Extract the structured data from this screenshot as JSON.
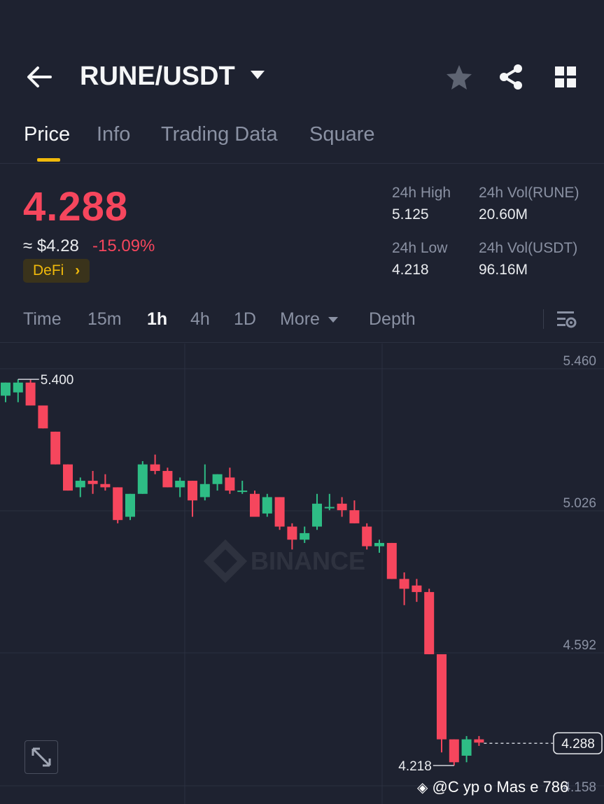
{
  "header": {
    "pair": "RUNE/USDT",
    "icons": [
      "back-arrow-icon",
      "caret-down-icon",
      "star-icon",
      "share-icon",
      "grid-icon"
    ]
  },
  "tabs": [
    {
      "label": "Price",
      "active": true
    },
    {
      "label": "Info",
      "active": false
    },
    {
      "label": "Trading Data",
      "active": false
    },
    {
      "label": "Square",
      "active": false
    }
  ],
  "ticker": {
    "price": "4.288",
    "approx": "≈ $4.28",
    "change": "-15.09%",
    "tag": "DeFi",
    "high_label": "24h High",
    "high": "5.125",
    "low_label": "24h Low",
    "low": "4.218",
    "vol_base_label": "24h Vol(RUNE)",
    "vol_base": "20.60M",
    "vol_quote_label": "24h Vol(USDT)",
    "vol_quote": "96.16M"
  },
  "intervals": [
    {
      "label": "Time",
      "active": false
    },
    {
      "label": "15m",
      "active": false
    },
    {
      "label": "1h",
      "active": true
    },
    {
      "label": "4h",
      "active": false
    },
    {
      "label": "1D",
      "active": false
    },
    {
      "label": "More",
      "active": false
    },
    {
      "label": "Depth",
      "active": false
    }
  ],
  "colors": {
    "up": "#2ebd85",
    "down": "#f6465d",
    "accent": "#f0b90b",
    "background": "#1e2230"
  },
  "chart_data": {
    "type": "candlestick",
    "y_ticks": [
      "5.460",
      "5.026",
      "4.592",
      "4.158"
    ],
    "ylim": [
      4.158,
      5.46
    ],
    "max_label": "5.400",
    "min_label": "4.218",
    "last_price_label": "4.288",
    "watermark": "BINANCE",
    "candles": [
      {
        "o": 5.35,
        "h": 5.39,
        "l": 5.33,
        "c": 5.39
      },
      {
        "o": 5.36,
        "h": 5.4,
        "l": 5.33,
        "c": 5.39
      },
      {
        "o": 5.39,
        "h": 5.4,
        "l": 5.32,
        "c": 5.32
      },
      {
        "o": 5.32,
        "h": 5.32,
        "l": 5.25,
        "c": 5.25
      },
      {
        "o": 5.24,
        "h": 5.24,
        "l": 5.14,
        "c": 5.14
      },
      {
        "o": 5.14,
        "h": 5.14,
        "l": 5.06,
        "c": 5.06
      },
      {
        "o": 5.07,
        "h": 5.1,
        "l": 5.04,
        "c": 5.09
      },
      {
        "o": 5.09,
        "h": 5.12,
        "l": 5.05,
        "c": 5.08
      },
      {
        "o": 5.08,
        "h": 5.11,
        "l": 5.06,
        "c": 5.07
      },
      {
        "o": 5.07,
        "h": 5.07,
        "l": 4.96,
        "c": 4.97
      },
      {
        "o": 4.98,
        "h": 5.05,
        "l": 4.97,
        "c": 5.05
      },
      {
        "o": 5.05,
        "h": 5.15,
        "l": 5.05,
        "c": 5.14
      },
      {
        "o": 5.14,
        "h": 5.17,
        "l": 5.11,
        "c": 5.12
      },
      {
        "o": 5.12,
        "h": 5.13,
        "l": 5.07,
        "c": 5.07
      },
      {
        "o": 5.07,
        "h": 5.1,
        "l": 5.04,
        "c": 5.09
      },
      {
        "o": 5.09,
        "h": 5.09,
        "l": 4.98,
        "c": 5.03
      },
      {
        "o": 5.04,
        "h": 5.14,
        "l": 5.03,
        "c": 5.08
      },
      {
        "o": 5.08,
        "h": 5.11,
        "l": 5.06,
        "c": 5.11
      },
      {
        "o": 5.1,
        "h": 5.13,
        "l": 5.05,
        "c": 5.06
      },
      {
        "o": 5.06,
        "h": 5.09,
        "l": 5.05,
        "c": 5.06
      },
      {
        "o": 5.05,
        "h": 5.06,
        "l": 4.98,
        "c": 4.98
      },
      {
        "o": 4.99,
        "h": 5.05,
        "l": 4.98,
        "c": 5.04
      },
      {
        "o": 5.04,
        "h": 5.04,
        "l": 4.94,
        "c": 4.95
      },
      {
        "o": 4.95,
        "h": 4.96,
        "l": 4.88,
        "c": 4.91
      },
      {
        "o": 4.91,
        "h": 4.95,
        "l": 4.9,
        "c": 4.93
      },
      {
        "o": 4.95,
        "h": 5.05,
        "l": 4.94,
        "c": 5.02
      },
      {
        "o": 5.01,
        "h": 5.05,
        "l": 5.0,
        "c": 5.01
      },
      {
        "o": 5.02,
        "h": 5.04,
        "l": 4.98,
        "c": 5.0
      },
      {
        "o": 5.0,
        "h": 5.03,
        "l": 4.96,
        "c": 4.96
      },
      {
        "o": 4.95,
        "h": 4.96,
        "l": 4.88,
        "c": 4.89
      },
      {
        "o": 4.89,
        "h": 4.91,
        "l": 4.87,
        "c": 4.9
      },
      {
        "o": 4.9,
        "h": 4.9,
        "l": 4.79,
        "c": 4.79
      },
      {
        "o": 4.79,
        "h": 4.81,
        "l": 4.71,
        "c": 4.76
      },
      {
        "o": 4.77,
        "h": 4.79,
        "l": 4.72,
        "c": 4.75
      },
      {
        "o": 4.75,
        "h": 4.76,
        "l": 4.56,
        "c": 4.56
      },
      {
        "o": 4.56,
        "h": 4.56,
        "l": 4.26,
        "c": 4.3
      },
      {
        "o": 4.3,
        "h": 4.3,
        "l": 4.22,
        "c": 4.23
      },
      {
        "o": 4.25,
        "h": 4.31,
        "l": 4.23,
        "c": 4.3
      },
      {
        "o": 4.3,
        "h": 4.31,
        "l": 4.28,
        "c": 4.29
      }
    ]
  },
  "credit": "@C  yp o Mas  e  786"
}
